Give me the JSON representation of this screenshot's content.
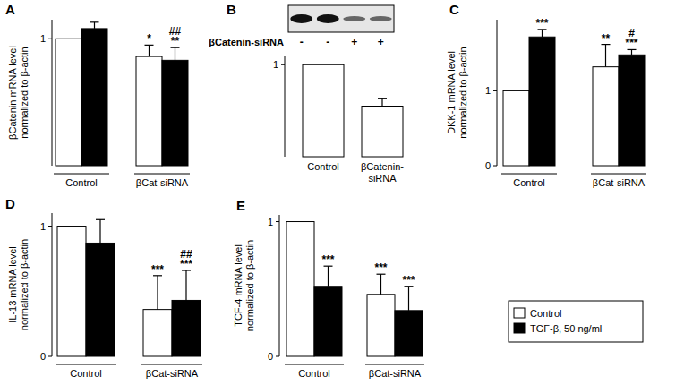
{
  "chart_data": [
    {
      "type": "bar",
      "title": "A",
      "y_label": [
        "βCatenin mRNA level",
        "normalized to β-actin"
      ],
      "categories": [
        "Control",
        "βCat-siRNA"
      ],
      "series": [
        {
          "color": "#ffffff",
          "values": [
            1,
            0.86
          ],
          "errors": [
            null,
            0.09
          ],
          "annotations": [
            [],
            [
              "*"
            ]
          ]
        },
        {
          "color": "#000000",
          "values": [
            1.08,
            0.83
          ],
          "errors": [
            0.05,
            0.1
          ],
          "annotations": [
            [],
            [
              "##",
              "**"
            ]
          ]
        }
      ],
      "ylim": [
        0,
        1.15
      ],
      "yticks": [
        1
      ]
    },
    {
      "type": "bar",
      "title": "B",
      "blot": {
        "label": "βCatenin-siRNA",
        "lanes": [
          "-",
          "-",
          "+",
          "+"
        ]
      },
      "categories": [
        "Control",
        "βCatenin-siRNA"
      ],
      "series": [
        {
          "color": "#ffffff",
          "values": [
            1,
            0.55
          ],
          "errors": [
            null,
            0.08
          ]
        }
      ],
      "ylim": [
        0,
        1.1
      ],
      "yticks": [
        1
      ]
    },
    {
      "type": "bar",
      "title": "C",
      "y_label": [
        "DKK-1 mRNA level",
        "normalized to β-actin"
      ],
      "categories": [
        "Control",
        "βCat-siRNA"
      ],
      "series": [
        {
          "color": "#ffffff",
          "values": [
            1,
            1.32
          ],
          "errors": [
            null,
            0.3
          ],
          "annotations": [
            [],
            [
              "**"
            ]
          ]
        },
        {
          "color": "#000000",
          "values": [
            1.72,
            1.48
          ],
          "errors": [
            0.1,
            0.07
          ],
          "annotations": [
            [
              "***"
            ],
            [
              "#",
              "***"
            ]
          ]
        }
      ],
      "ylim": [
        0,
        1.95
      ],
      "yticks": [
        0,
        1
      ]
    },
    {
      "type": "bar",
      "title": "D",
      "y_label": [
        "IL-13 mRNA level",
        "normalized to β-actin"
      ],
      "categories": [
        "Control",
        "βCat-siRNA"
      ],
      "series": [
        {
          "color": "#ffffff",
          "values": [
            1,
            0.36
          ],
          "errors": [
            null,
            0.26
          ],
          "annotations": [
            [],
            [
              "***"
            ]
          ]
        },
        {
          "color": "#000000",
          "values": [
            0.87,
            0.43
          ],
          "errors": [
            0.18,
            0.23
          ],
          "annotations": [
            [],
            [
              "##",
              "***"
            ]
          ]
        }
      ],
      "ylim": [
        0,
        1.1
      ],
      "yticks": [
        0,
        1
      ]
    },
    {
      "type": "bar",
      "title": "E",
      "y_label": [
        "TCF-4 mRNA level",
        "normalized to β-actin"
      ],
      "categories": [
        "Control",
        "βCat-siRNA"
      ],
      "series": [
        {
          "name": "Control",
          "color": "#ffffff",
          "values": [
            1,
            0.46
          ],
          "errors": [
            null,
            0.15
          ],
          "annotations": [
            [],
            [
              "***"
            ]
          ]
        },
        {
          "name": "TGF-β, 50 ng/ml",
          "color": "#000000",
          "values": [
            0.52,
            0.34
          ],
          "errors": [
            0.15,
            0.18
          ],
          "annotations": [
            [
              "***"
            ],
            [
              "***"
            ]
          ]
        }
      ],
      "ylim": [
        0,
        1.05
      ],
      "yticks": [
        0,
        1
      ],
      "legend": "right"
    }
  ]
}
